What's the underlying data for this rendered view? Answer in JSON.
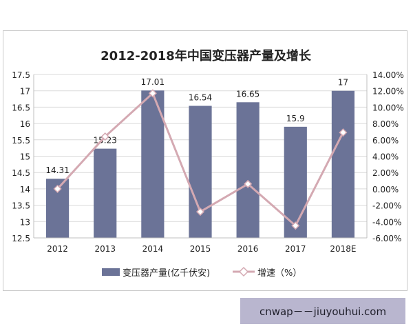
{
  "chart_data": {
    "type": "bar",
    "title": "2012-2018年中国变压器产量及增长",
    "categories": [
      "2012",
      "2013",
      "2014",
      "2015",
      "2016",
      "2017",
      "2018E"
    ],
    "series": [
      {
        "name": "变压器产量(亿千伏安)",
        "type": "bar",
        "axis": "left",
        "values": [
          14.31,
          15.23,
          17.01,
          16.54,
          16.65,
          15.9,
          17
        ],
        "data_labels": [
          "14.31",
          "15.23",
          "17.01",
          "16.54",
          "16.65",
          "15.9",
          "17"
        ],
        "color": "#6b7397"
      },
      {
        "name": "增速（%）",
        "type": "line",
        "axis": "right",
        "values": [
          0.0,
          6.4,
          11.7,
          -2.8,
          0.6,
          -4.5,
          6.9
        ],
        "color": "#d4a9b2"
      }
    ],
    "ylim_left": [
      12.5,
      17.5
    ],
    "yticks_left": [
      "12.5",
      "13",
      "13.5",
      "14",
      "14.5",
      "15",
      "15.5",
      "16",
      "16.5",
      "17",
      "17.5"
    ],
    "ylim_right": [
      -6,
      14
    ],
    "yticks_right": [
      "-6.00%",
      "-4.00%",
      "-2.00%",
      "0.00%",
      "2.00%",
      "4.00%",
      "6.00%",
      "8.00%",
      "10.00%",
      "12.00%",
      "14.00%"
    ],
    "grid": true,
    "legend_position": "bottom"
  },
  "watermark": "cnwap－－jiuyouhui.com"
}
